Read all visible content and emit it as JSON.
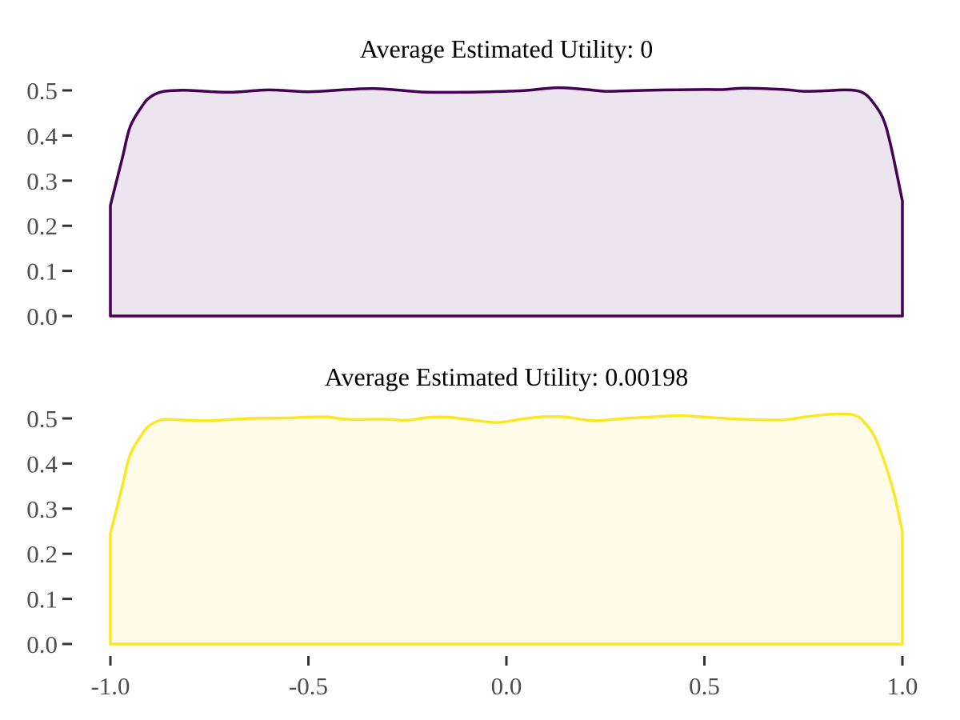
{
  "chart_data": [
    {
      "type": "area",
      "title": "Average Estimated Utility: 0",
      "xlabel": "",
      "ylabel": "",
      "xlim": [
        -1.0,
        1.0
      ],
      "ylim": [
        0.0,
        0.52
      ],
      "y_ticks": [
        "0.0",
        "0.1",
        "0.2",
        "0.3",
        "0.4",
        "0.5"
      ],
      "x_ticks": [],
      "grid": false,
      "line_color": "#440154",
      "fill_color": "#ece4ee",
      "series": [
        {
          "x": [
            -1.0,
            -0.97,
            -0.95,
            -0.92,
            -0.9,
            -0.87,
            -0.83,
            -0.8,
            -0.7,
            -0.6,
            -0.5,
            -0.4,
            -0.33,
            -0.25,
            -0.2,
            -0.1,
            0.0,
            0.05,
            0.13,
            0.2,
            0.25,
            0.3,
            0.4,
            0.5,
            0.55,
            0.6,
            0.7,
            0.75,
            0.8,
            0.85,
            0.88,
            0.9,
            0.92,
            0.95,
            0.97,
            1.0
          ],
          "y": [
            0.245,
            0.35,
            0.42,
            0.465,
            0.485,
            0.497,
            0.5,
            0.5,
            0.496,
            0.501,
            0.497,
            0.502,
            0.504,
            0.499,
            0.496,
            0.496,
            0.498,
            0.5,
            0.506,
            0.502,
            0.498,
            0.499,
            0.501,
            0.502,
            0.502,
            0.505,
            0.502,
            0.498,
            0.499,
            0.501,
            0.5,
            0.495,
            0.48,
            0.44,
            0.38,
            0.255
          ]
        }
      ]
    },
    {
      "type": "area",
      "title": "Average Estimated Utility: 0.00198",
      "xlabel": "",
      "ylabel": "",
      "xlim": [
        -1.0,
        1.0
      ],
      "ylim": [
        0.0,
        0.52
      ],
      "y_ticks": [
        "0.0",
        "0.1",
        "0.2",
        "0.3",
        "0.4",
        "0.5"
      ],
      "x_ticks": [
        "-1.0",
        "-0.5",
        "0.0",
        "0.5",
        "1.0"
      ],
      "grid": false,
      "line_color": "#fde725",
      "fill_color": "#fefbe9",
      "series": [
        {
          "x": [
            -1.0,
            -0.97,
            -0.95,
            -0.92,
            -0.9,
            -0.87,
            -0.83,
            -0.75,
            -0.65,
            -0.55,
            -0.5,
            -0.45,
            -0.4,
            -0.3,
            -0.25,
            -0.2,
            -0.15,
            -0.1,
            -0.03,
            0.0,
            0.05,
            0.1,
            0.15,
            0.22,
            0.3,
            0.4,
            0.45,
            0.5,
            0.6,
            0.7,
            0.75,
            0.8,
            0.85,
            0.88,
            0.9,
            0.93,
            0.96,
            0.98,
            1.0
          ],
          "y": [
            0.245,
            0.35,
            0.42,
            0.465,
            0.485,
            0.497,
            0.497,
            0.495,
            0.5,
            0.501,
            0.503,
            0.503,
            0.498,
            0.498,
            0.496,
            0.502,
            0.503,
            0.498,
            0.491,
            0.493,
            0.5,
            0.504,
            0.503,
            0.495,
            0.5,
            0.505,
            0.506,
            0.503,
            0.498,
            0.497,
            0.503,
            0.508,
            0.51,
            0.507,
            0.495,
            0.46,
            0.39,
            0.33,
            0.25
          ]
        }
      ]
    }
  ]
}
